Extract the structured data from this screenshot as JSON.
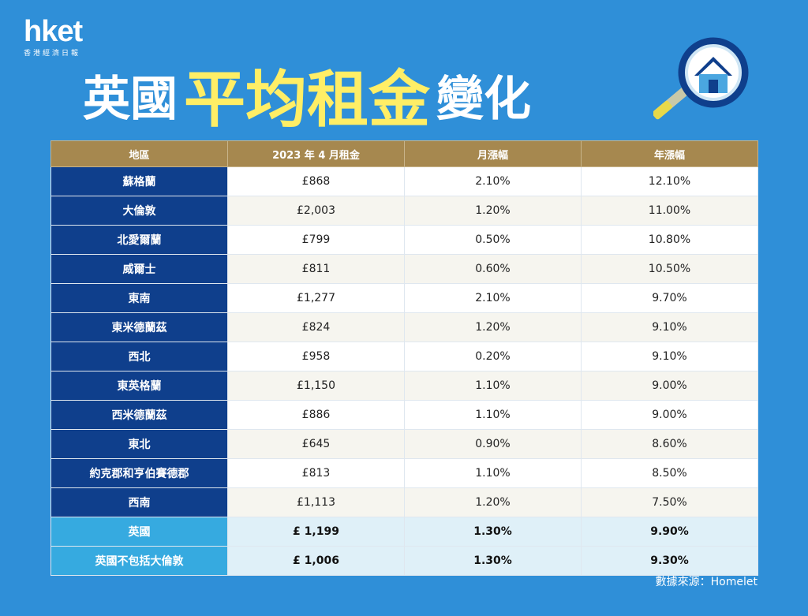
{
  "logo": {
    "main": "hket",
    "sub": "香港經濟日報"
  },
  "title": {
    "part1": "英國",
    "part2": "平均租金",
    "part3": "變化"
  },
  "icons": {
    "magnifier": "magnifier-house-icon"
  },
  "colors": {
    "background": "#2f8fd8",
    "header": "#a6884f",
    "region": "#0f3f8c",
    "summary_region": "#36aae0",
    "title_accent": "#ffee66"
  },
  "table": {
    "headers": [
      "地區",
      "2023 年 4 月租金",
      "月漲幅",
      "年漲幅"
    ],
    "rows": [
      {
        "region": "蘇格蘭",
        "rent": "£868",
        "monthly": "2.10%",
        "yearly": "12.10%"
      },
      {
        "region": "大倫敦",
        "rent": "£2,003",
        "monthly": "1.20%",
        "yearly": "11.00%"
      },
      {
        "region": "北愛爾蘭",
        "rent": "£799",
        "monthly": "0.50%",
        "yearly": "10.80%"
      },
      {
        "region": "威爾士",
        "rent": "£811",
        "monthly": "0.60%",
        "yearly": "10.50%"
      },
      {
        "region": "東南",
        "rent": "£1,277",
        "monthly": "2.10%",
        "yearly": "9.70%"
      },
      {
        "region": "東米德蘭茲",
        "rent": "£824",
        "monthly": "1.20%",
        "yearly": "9.10%"
      },
      {
        "region": "西北",
        "rent": "£958",
        "monthly": "0.20%",
        "yearly": "9.10%"
      },
      {
        "region": "東英格蘭",
        "rent": "£1,150",
        "monthly": "1.10%",
        "yearly": "9.00%"
      },
      {
        "region": "西米德蘭茲",
        "rent": "£886",
        "monthly": "1.10%",
        "yearly": "9.00%"
      },
      {
        "region": "東北",
        "rent": "£645",
        "monthly": "0.90%",
        "yearly": "8.60%"
      },
      {
        "region": "約克郡和亨伯賽德郡",
        "rent": "£813",
        "monthly": "1.10%",
        "yearly": "8.50%"
      },
      {
        "region": "西南",
        "rent": "£1,113",
        "monthly": "1.20%",
        "yearly": "7.50%"
      }
    ],
    "summary": [
      {
        "region": "英國",
        "rent": "£ 1,199",
        "monthly": "1.30%",
        "yearly": "9.90%"
      },
      {
        "region": "英國不包括大倫敦",
        "rent": "£ 1,006",
        "monthly": "1.30%",
        "yearly": "9.30%"
      }
    ]
  },
  "source": "數據來源：Homelet"
}
